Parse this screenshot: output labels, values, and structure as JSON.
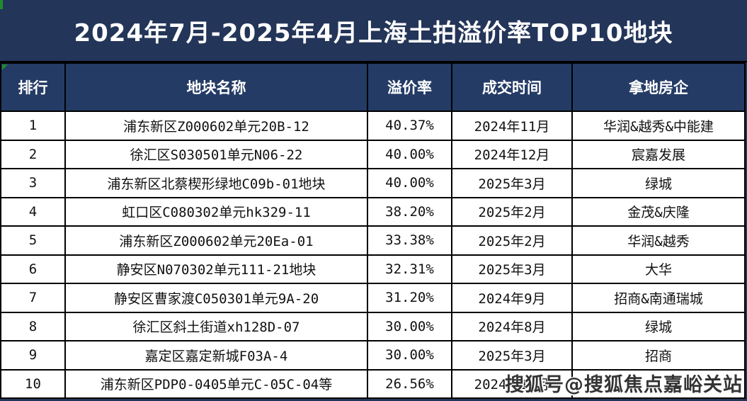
{
  "title": "2024年7月-2025年4月上海土拍溢价率TOP10地块",
  "chart_data": {
    "type": "table",
    "title": "2024年7月-2025年4月上海土拍溢价率TOP10地块",
    "columns": [
      "排行",
      "地块名称",
      "溢价率",
      "成交时间",
      "拿地房企"
    ],
    "rows": [
      [
        "1",
        "浦东新区Z000602单元20B-12",
        "40.37%",
        "2024年11月",
        "华润&越秀&中能建"
      ],
      [
        "2",
        "徐汇区S030501单元N06-22",
        "40.00%",
        "2024年12月",
        "宸嘉发展"
      ],
      [
        "3",
        "浦东新区北蔡楔形绿地C09b-01地块",
        "40.00%",
        "2025年3月",
        "绿城"
      ],
      [
        "4",
        "虹口区C080302单元hk329-11",
        "38.20%",
        "2025年2月",
        "金茂&庆隆"
      ],
      [
        "5",
        "浦东新区Z000602单元20Ea-01",
        "33.38%",
        "2025年2月",
        "华润&越秀"
      ],
      [
        "6",
        "静安区N070302单元111-21地块",
        "32.31%",
        "2025年3月",
        "大华"
      ],
      [
        "7",
        "静安区曹家渡C050301单元9A-20",
        "31.20%",
        "2024年9月",
        "招商&南通瑞城"
      ],
      [
        "8",
        "徐汇区斜土街道xh128D-07",
        "30.00%",
        "2024年8月",
        "绿城"
      ],
      [
        "9",
        "嘉定区嘉定新城F03A-4",
        "30.00%",
        "2025年3月",
        "招商"
      ],
      [
        "10",
        "浦东新区PDP0-0405单元C-05C-04等",
        "26.56%",
        "2024年11月",
        ""
      ]
    ],
    "premium_values_pct": [
      40.37,
      40.0,
      40.0,
      38.2,
      33.38,
      32.31,
      31.2,
      30.0,
      30.0,
      26.56
    ]
  },
  "watermark": {
    "text": "搜狐号@搜狐焦点嘉峪关站"
  },
  "colors": {
    "page_bg": "#233558",
    "header_bg": "#243b66",
    "cell_bg": "#ffffff",
    "border": "#000000",
    "title_text": "#ffffff",
    "green_marker": "#1e8c2e",
    "watermark_text": "#343434"
  }
}
